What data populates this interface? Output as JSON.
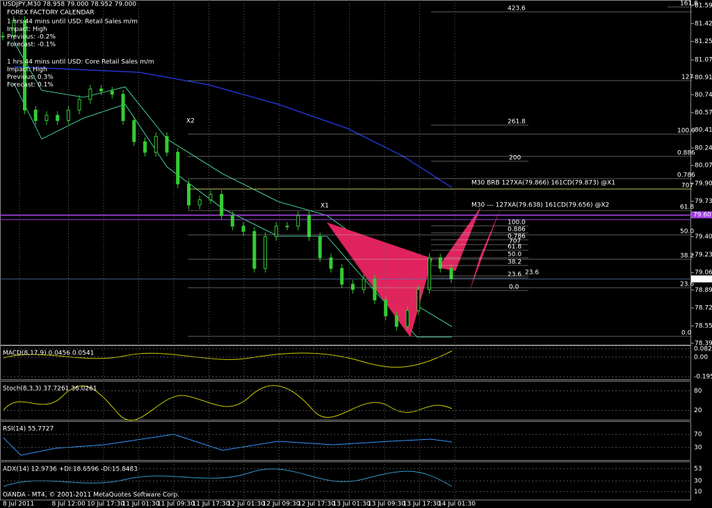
{
  "header": {
    "symbol": "USDJPY,M30 78.958 79.000 78.952 79.000",
    "calendar": "FOREX FACTORY CALENDAR"
  },
  "events": [
    {
      "title": "1 hrs 44 mins until USD: Retail Sales m/m",
      "impact": "Impact: High",
      "previous": "Previous: -0.2%",
      "forecast": "Forecast: -0.1%"
    },
    {
      "title": "1 hrs 44 mins until USD: Core Retail Sales m/m",
      "impact": "Impact: High",
      "previous": "Previous: 0.3%",
      "forecast": "Forecast: 0.1%"
    }
  ],
  "pattern": {
    "x2": "X2",
    "x1": "X1",
    "note1": "M30 BRB 127XA(79.866) 161CD(79.873) @X1",
    "note2": "M30 --- 127XA(79.638) 161CD(79.656) @X2"
  },
  "fib_labels": [
    "423.6",
    "161.8",
    "127",
    "261.8",
    "100.0",
    "0.886",
    "200",
    "0.786",
    "707",
    "61.8",
    "50.0",
    "38.2",
    "23.6",
    "23.6",
    "0.0",
    "100.0",
    "0.886",
    "0.786",
    "707",
    "61.8",
    "50.0",
    "38.2",
    "23.6",
    "0.0"
  ],
  "price": {
    "yticks": [
      {
        "value": 81.59,
        "label": "81.590"
      },
      {
        "value": 81.42,
        "label": "81.420"
      },
      {
        "value": 81.25,
        "label": "81.250"
      },
      {
        "value": 81.075,
        "label": "81.075"
      },
      {
        "value": 80.91,
        "label": "80.910"
      },
      {
        "value": 80.745,
        "label": "80.745"
      },
      {
        "value": 80.575,
        "label": "80.575"
      },
      {
        "value": 80.41,
        "label": "80.410"
      },
      {
        "value": 80.24,
        "label": "80.240"
      },
      {
        "value": 80.075,
        "label": "80.075"
      },
      {
        "value": 79.905,
        "label": "79.905"
      },
      {
        "value": 79.735,
        "label": "79.735"
      },
      {
        "value": 79.4,
        "label": "79.400"
      },
      {
        "value": 79.23,
        "label": "79.230"
      },
      {
        "value": 79.06,
        "label": "79.060"
      },
      {
        "value": 78.895,
        "label": "78.895"
      },
      {
        "value": 78.725,
        "label": "78.725"
      },
      {
        "value": 78.555,
        "label": "78.555"
      },
      {
        "value": 78.39,
        "label": "78.390"
      }
    ],
    "markers": [
      {
        "value": 79.607,
        "label": "79.607"
      },
      {
        "value": 79,
        "label": "79.000"
      }
    ],
    "close": [
      81.3,
      81.45,
      80.6,
      80.5,
      80.55,
      80.5,
      80.6,
      80.7,
      80.8,
      80.78,
      80.75,
      80.5,
      80.3,
      80.2,
      80.35,
      80.2,
      79.9,
      79.7,
      79.75,
      79.8,
      79.6,
      79.5,
      79.45,
      79.1,
      79.4,
      79.5,
      79.5,
      79.6,
      79.4,
      79.2,
      79.1,
      78.95,
      78.9,
      79.0,
      78.8,
      78.65,
      78.55,
      78.7,
      78.9,
      79.2,
      79.1,
      79.0
    ]
  },
  "indicators": [
    {
      "label": "MACD(8,17,9) 0.0456 0.0541",
      "ticks": [
        0.0821,
        {
          "value": 0,
          "label": "0.00"
        },
        -0.195
      ]
    },
    {
      "label": "Stoch(8,3,3) 37.7261 36.0261",
      "ticks": [
        80,
        20
      ]
    },
    {
      "label": "RSI(14) 55.7727",
      "ticks": [
        70,
        30
      ]
    },
    {
      "label": "ADX(14) 12.9736 +DI:18.6596 -DI:15.8483",
      "ticks": [
        53,
        30,
        10
      ]
    }
  ],
  "time_labels": [
    "8 Jul 2011",
    "8 Jul 12:00",
    "10 Jul 17:30",
    "11 Jul 01:30",
    "11 Jul 09:30",
    "11 Jul 17:30",
    "12 Jul 01:30",
    "12 Jul 09:30",
    "12 Jul 17:30",
    "13 Jul 01:30",
    "13 Jul 09:30",
    "13 Jul 17:30",
    "14 Jul 01:30"
  ],
  "copyright": "OANDA - MT4, © 2001-2011 MetaQuotes Software Corp."
}
